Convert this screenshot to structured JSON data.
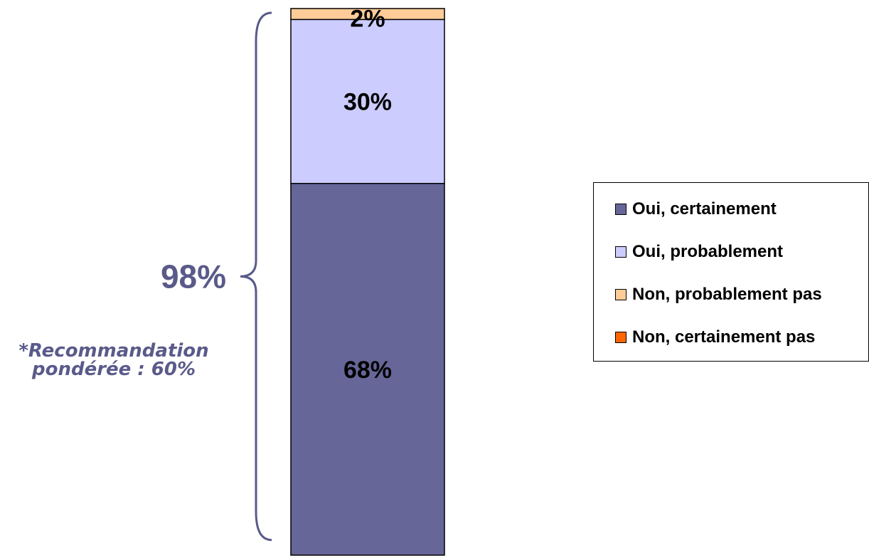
{
  "chart_data": {
    "type": "bar",
    "stacked": true,
    "categories": [
      ""
    ],
    "series": [
      {
        "name": "Oui, certainement",
        "values": [
          68
        ],
        "color": "#666699",
        "label": "68%"
      },
      {
        "name": "Oui, probablement",
        "values": [
          30
        ],
        "color": "#ccccff",
        "label": "30%"
      },
      {
        "name": "Non, probablement pas",
        "values": [
          2
        ],
        "color": "#ffcc99",
        "label": "2%"
      },
      {
        "name": "Non, certainement pas",
        "values": [
          0
        ],
        "color": "#ff6600",
        "label": ""
      }
    ],
    "ylim": [
      0,
      100
    ],
    "grid": false,
    "legend_position": "right",
    "annotations": {
      "total_label": "98%",
      "total_color": "#5a5a8a",
      "note_line1": "*Recommandation",
      "note_line2": "pondérée : 60%"
    }
  }
}
